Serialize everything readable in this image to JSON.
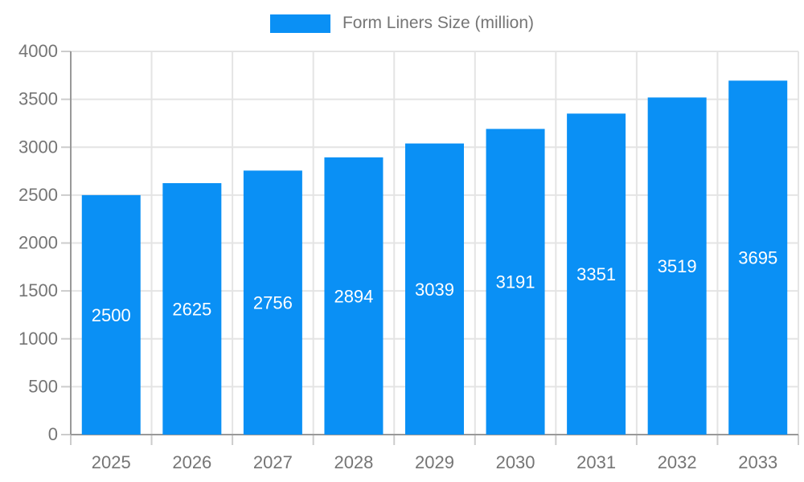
{
  "chart_data": {
    "type": "bar",
    "title": "",
    "legend": [
      "Form Liners Size (million)"
    ],
    "legend_position": "top",
    "categories": [
      "2025",
      "2026",
      "2027",
      "2028",
      "2029",
      "2030",
      "2031",
      "2032",
      "2033"
    ],
    "series": [
      {
        "name": "Form Liners Size (million)",
        "values": [
          2500,
          2625,
          2756,
          2894,
          3039,
          3191,
          3351,
          3519,
          3695
        ]
      }
    ],
    "bar_value_labels": [
      "2500",
      "2625",
      "2756",
      "2894",
      "3039",
      "3191",
      "3351",
      "3519",
      "3695"
    ],
    "xlabel": "",
    "ylabel": "",
    "ylim": [
      0,
      4000
    ],
    "yticks": [
      0,
      500,
      1000,
      1500,
      2000,
      2500,
      3000,
      3500,
      4000
    ],
    "grid": true,
    "colors": {
      "bar_fill": "#0a90f5",
      "bar_label_text": "#ffffff",
      "axis_line": "#999999",
      "grid_line": "#e4e4e4",
      "tick_line": "#cccccc",
      "axis_text": "#757575",
      "background": "#ffffff"
    }
  }
}
